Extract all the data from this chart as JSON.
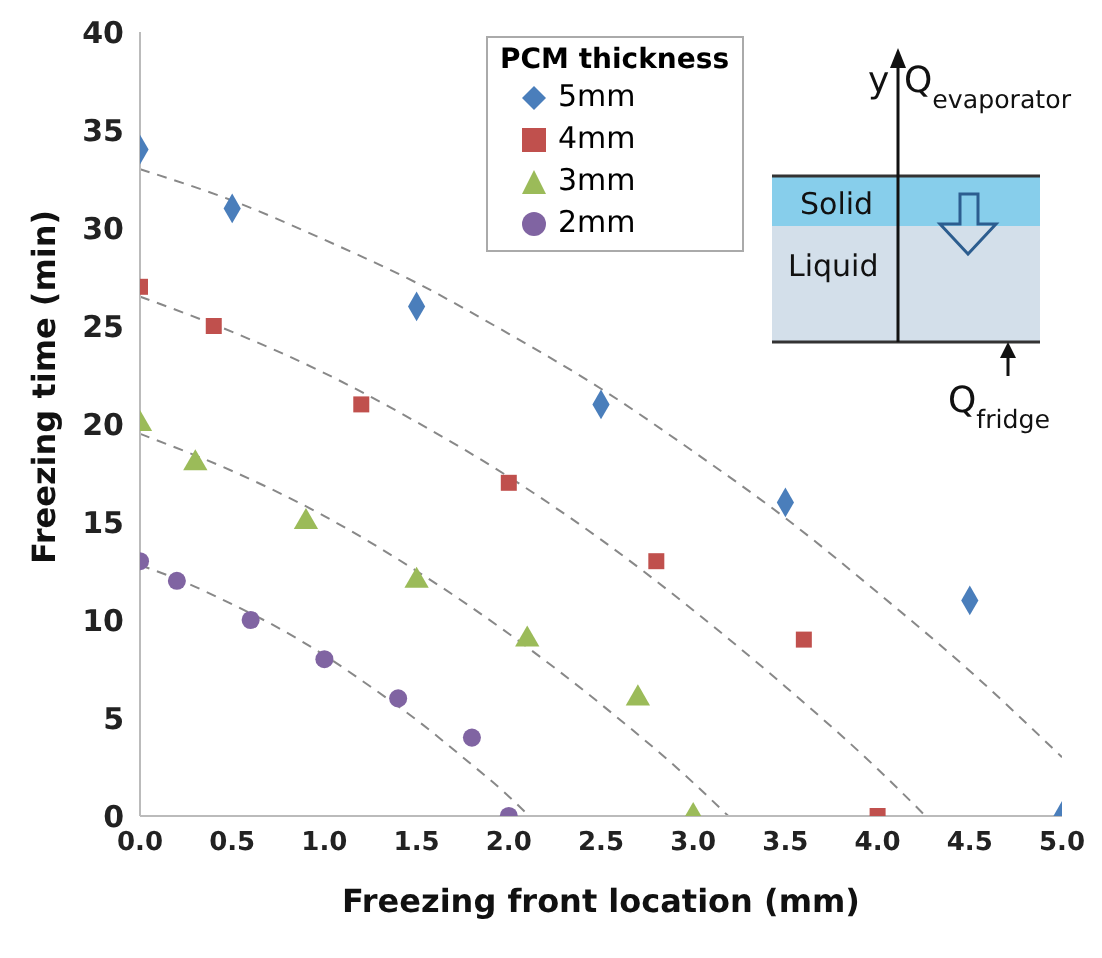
{
  "chart_data": {
    "type": "scatter",
    "xlabel": "Freezing front location (mm)",
    "ylabel": "Freezing time (min)",
    "legend_title": "PCM thickness",
    "legend": "top",
    "grid": false,
    "xlim": [
      0,
      5
    ],
    "xticks": [
      {
        "value": 0,
        "label": "0.0"
      },
      {
        "value": 0.5,
        "label": "0.5"
      },
      {
        "value": 1,
        "label": "1.0"
      },
      {
        "value": 1.5,
        "label": "1.5"
      },
      {
        "value": 2,
        "label": "2.0"
      },
      {
        "value": 2.5,
        "label": "2.5"
      },
      {
        "value": 3,
        "label": "3.0"
      },
      {
        "value": 3.5,
        "label": "3.5"
      },
      {
        "value": 4,
        "label": "4.0"
      },
      {
        "value": 4.5,
        "label": "4.5"
      },
      {
        "value": 5,
        "label": "5.0"
      }
    ],
    "ylim": [
      0,
      40
    ],
    "yticks": [
      0,
      5,
      10,
      15,
      20,
      25,
      30,
      35,
      40
    ],
    "series": [
      {
        "name": "5mm",
        "color": "#4a7ebb",
        "marker": "diamond",
        "x": [
          0,
          0.5,
          1.5,
          2.5,
          3.5,
          4.5,
          5
        ],
        "values": [
          34,
          31,
          26,
          21,
          16,
          11,
          0
        ]
      },
      {
        "name": "4mm",
        "color": "#c0504d",
        "marker": "square",
        "x": [
          0,
          0.4,
          1.2,
          2,
          2.8,
          3.6,
          4
        ],
        "values": [
          27,
          25,
          21,
          17,
          13,
          9,
          0
        ]
      },
      {
        "name": "3mm",
        "color": "#9bbb59",
        "marker": "triangle",
        "x": [
          0,
          0.3,
          0.9,
          1.5,
          2.1,
          2.7,
          3
        ],
        "values": [
          20,
          18,
          15,
          12,
          9,
          6,
          0
        ]
      },
      {
        "name": "2mm",
        "color": "#8064a2",
        "marker": "circle",
        "x": [
          0,
          0.2,
          0.6,
          1,
          1.4,
          1.8,
          2
        ],
        "values": [
          13,
          12,
          10,
          8,
          6,
          4,
          0
        ]
      },
      {
        "type": "line",
        "color": "#888888",
        "line_style": "dashed",
        "marker": "none",
        "x": [
          0,
          0.5,
          1,
          1.5,
          2,
          2.5,
          3,
          3.5,
          4,
          4.5,
          5
        ],
        "values": [
          33,
          31.4,
          29.4,
          27.2,
          24.6,
          21.8,
          18.6,
          15.2,
          11.4,
          7.4,
          3
        ]
      },
      {
        "type": "line",
        "color": "#888888",
        "line_style": "dashed",
        "marker": "none",
        "x": [
          0,
          0.5,
          1,
          1.5,
          2,
          2.5,
          3,
          3.5,
          4,
          4.26
        ],
        "values": [
          26.5,
          24.7,
          22.6,
          20.1,
          17.3,
          14.1,
          10.5,
          6.6,
          2.4,
          0
        ]
      },
      {
        "type": "line",
        "color": "#888888",
        "line_style": "dashed",
        "marker": "none",
        "x": [
          0,
          0.5,
          1,
          1.5,
          2,
          2.5,
          3,
          3.19
        ],
        "values": [
          19.5,
          17.6,
          15.3,
          12.5,
          9.3,
          5.7,
          1.7,
          0
        ]
      },
      {
        "type": "line",
        "color": "#888888",
        "line_style": "dashed",
        "marker": "none",
        "x": [
          0,
          0.25,
          0.5,
          0.75,
          1,
          1.25,
          1.5,
          1.75,
          2,
          2.11
        ],
        "values": [
          12.8,
          11.9,
          10.8,
          9.6,
          8.2,
          6.6,
          4.9,
          3,
          1,
          0
        ]
      }
    ],
    "annotations": [
      "y",
      "Q$_{evaporator}$",
      "Solid",
      "Liquid",
      "Q$_{fridge}$"
    ]
  }
}
